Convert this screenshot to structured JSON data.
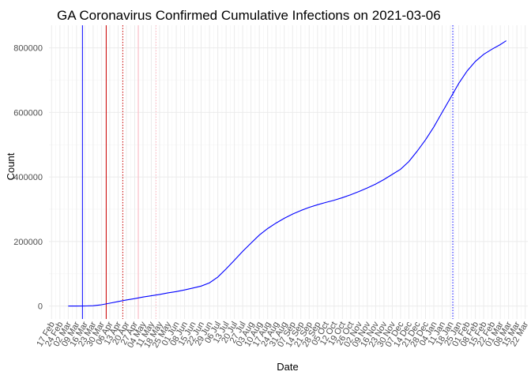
{
  "chart_data": {
    "type": "line",
    "title": "GA Coronavirus Confirmed Cumulative Infections on 2021-03-06",
    "xlabel": "Date",
    "ylabel": "Count",
    "x_tick_labels": [
      "17 Feb",
      "24 Feb",
      "02 Mar",
      "09 Mar",
      "16 Mar",
      "23 Mar",
      "30 Mar",
      "06 Apr",
      "13 Apr",
      "20 Apr",
      "27 Apr",
      "04 May",
      "11 May",
      "18 May",
      "25 May",
      "01 Jun",
      "08 Jun",
      "15 Jun",
      "22 Jun",
      "29 Jun",
      "06 Jul",
      "13 Jul",
      "20 Jul",
      "27 Jul",
      "03 Aug",
      "10 Aug",
      "17 Aug",
      "24 Aug",
      "31 Aug",
      "07 Sep",
      "14 Sep",
      "21 Sep",
      "28 Sep",
      "05 Oct",
      "12 Oct",
      "19 Oct",
      "26 Oct",
      "02 Nov",
      "09 Nov",
      "16 Nov",
      "23 Nov",
      "30 Nov",
      "07 Dec",
      "14 Dec",
      "21 Dec",
      "28 Dec",
      "04 Jan",
      "11 Jan",
      "18 Jan",
      "25 Jan",
      "01 Feb",
      "08 Feb",
      "15 Feb",
      "22 Feb",
      "01 Mar",
      "08 Mar",
      "15 Mar",
      "22 Mar"
    ],
    "y_ticks": [
      0,
      200000,
      400000,
      600000,
      800000
    ],
    "y_tick_labels": [
      "0",
      "200000",
      "400000",
      "600000",
      "800000"
    ],
    "ylim": [
      -40000,
      870000
    ],
    "xlim": [
      "2020-02-17",
      "2021-03-22"
    ],
    "grid": true,
    "series": [
      {
        "color": "#0000ff",
        "points": [
          [
            "2020-03-02",
            0
          ],
          [
            "2020-03-09",
            50
          ],
          [
            "2020-03-16",
            250
          ],
          [
            "2020-03-23",
            1000
          ],
          [
            "2020-03-30",
            4000
          ],
          [
            "2020-04-06",
            9000
          ],
          [
            "2020-04-13",
            14000
          ],
          [
            "2020-04-20",
            19000
          ],
          [
            "2020-04-27",
            23000
          ],
          [
            "2020-05-04",
            28000
          ],
          [
            "2020-05-11",
            32000
          ],
          [
            "2020-05-18",
            36000
          ],
          [
            "2020-05-25",
            41000
          ],
          [
            "2020-06-01",
            45000
          ],
          [
            "2020-06-08",
            50000
          ],
          [
            "2020-06-15",
            56000
          ],
          [
            "2020-06-22",
            62000
          ],
          [
            "2020-06-29",
            72000
          ],
          [
            "2020-07-06",
            90000
          ],
          [
            "2020-07-13",
            115000
          ],
          [
            "2020-07-20",
            142000
          ],
          [
            "2020-07-27",
            170000
          ],
          [
            "2020-08-03",
            195000
          ],
          [
            "2020-08-10",
            220000
          ],
          [
            "2020-08-17",
            240000
          ],
          [
            "2020-08-24",
            257000
          ],
          [
            "2020-08-31",
            272000
          ],
          [
            "2020-09-07",
            285000
          ],
          [
            "2020-09-14",
            296000
          ],
          [
            "2020-09-21",
            306000
          ],
          [
            "2020-09-28",
            314000
          ],
          [
            "2020-10-05",
            321000
          ],
          [
            "2020-10-12",
            328000
          ],
          [
            "2020-10-19",
            336000
          ],
          [
            "2020-10-26",
            345000
          ],
          [
            "2020-11-02",
            355000
          ],
          [
            "2020-11-09",
            366000
          ],
          [
            "2020-11-16",
            378000
          ],
          [
            "2020-11-23",
            392000
          ],
          [
            "2020-11-30",
            408000
          ],
          [
            "2020-12-07",
            424000
          ],
          [
            "2020-12-14",
            448000
          ],
          [
            "2020-12-21",
            480000
          ],
          [
            "2020-12-28",
            515000
          ],
          [
            "2021-01-04",
            555000
          ],
          [
            "2021-01-11",
            600000
          ],
          [
            "2021-01-18",
            645000
          ],
          [
            "2021-01-25",
            690000
          ],
          [
            "2021-02-01",
            728000
          ],
          [
            "2021-02-08",
            758000
          ],
          [
            "2021-02-15",
            780000
          ],
          [
            "2021-02-22",
            796000
          ],
          [
            "2021-03-01",
            810000
          ],
          [
            "2021-03-06",
            822000
          ]
        ]
      }
    ],
    "reference_lines": [
      {
        "date": "2020-03-14",
        "color": "#0000ff",
        "style": "solid"
      },
      {
        "date": "2020-04-03",
        "color": "#cc0000",
        "style": "solid"
      },
      {
        "date": "2020-04-17",
        "color": "#cc0000",
        "style": "dotted"
      },
      {
        "date": "2020-04-30",
        "color": "#ffb6c1",
        "style": "solid"
      },
      {
        "date": "2020-05-15",
        "color": "#ffb6c1",
        "style": "dotted"
      },
      {
        "date": "2021-01-20",
        "color": "#0000ff",
        "style": "dotted"
      }
    ]
  }
}
